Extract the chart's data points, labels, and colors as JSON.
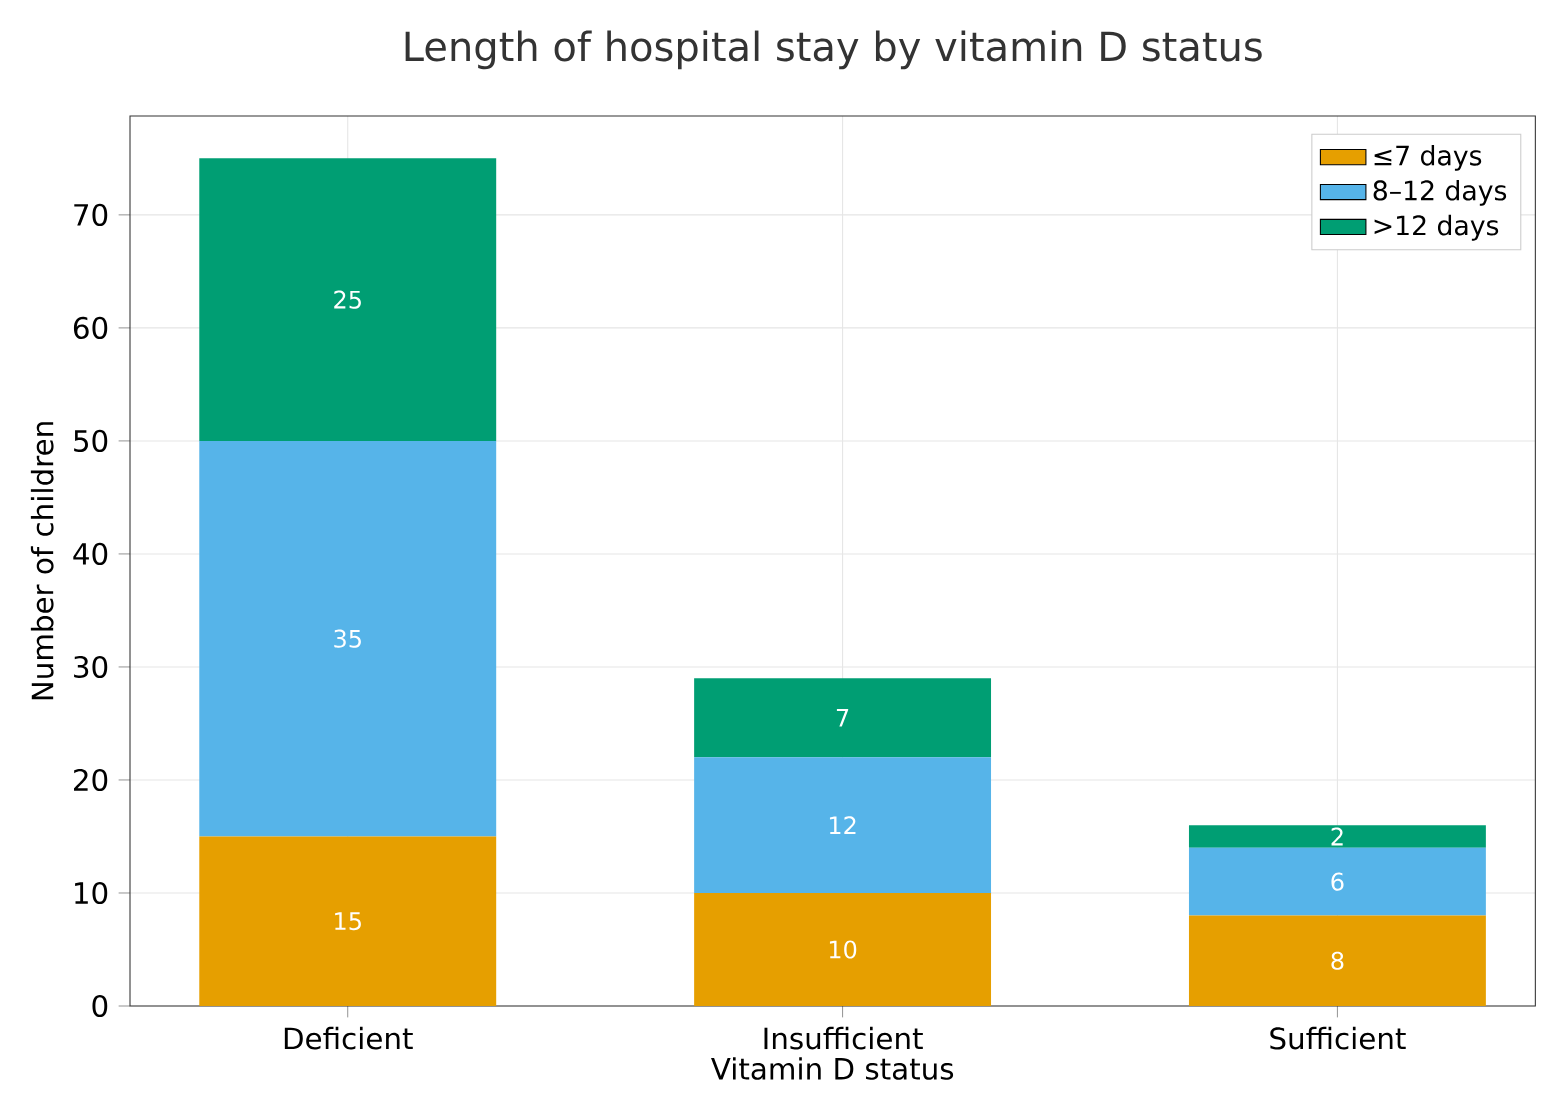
{
  "chart_data": {
    "type": "bar",
    "title": "Length of hospital stay by vitamin D status",
    "xlabel": "Vitamin D status",
    "ylabel": "Number of children",
    "categories": [
      "Deficient",
      "Insufficient",
      "Sufficient"
    ],
    "series": [
      {
        "name": "≤7 days",
        "color": "#e69f00",
        "values": [
          15,
          10,
          8
        ]
      },
      {
        "name": "8–12 days",
        "color": "#56b4e9",
        "values": [
          35,
          12,
          6
        ]
      },
      {
        "name": ">12 days",
        "color": "#009e73",
        "values": [
          25,
          7,
          2
        ]
      }
    ],
    "stacked": true,
    "data_labels": true,
    "ylim": [
      0,
      78.75
    ],
    "yticks": [
      0,
      10,
      20,
      30,
      40,
      50,
      60,
      70
    ],
    "grid": true,
    "legend": "top right"
  }
}
